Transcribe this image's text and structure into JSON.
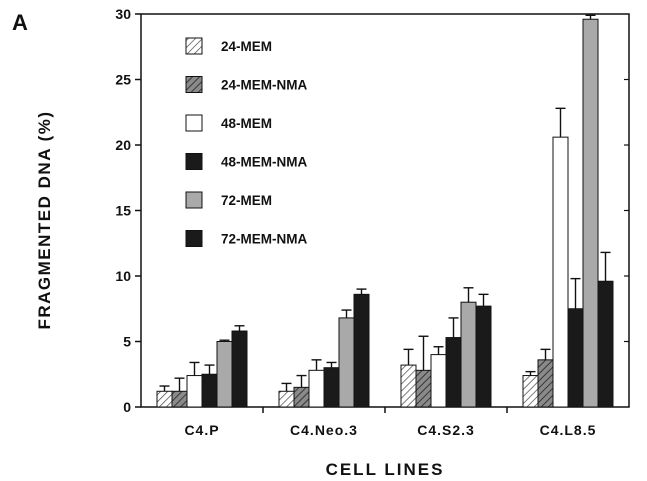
{
  "chart_data": {
    "type": "bar",
    "panel_label": "A",
    "xlabel": "CELL LINES",
    "ylabel": "FRAGMENTED DNA (%)",
    "ylim": [
      0,
      30
    ],
    "yticks": [
      0,
      5,
      10,
      15,
      20,
      25,
      30
    ],
    "grid": false,
    "legend_position": "top-left",
    "categories": [
      "C4.P",
      "C4.Neo.3",
      "C4.S2.3",
      "C4.L8.5"
    ],
    "series": [
      {
        "name": "24-MEM",
        "pattern": "hatch-light",
        "values": [
          1.2,
          1.2,
          3.2,
          2.4
        ],
        "errors": [
          0.4,
          0.6,
          1.2,
          0.3
        ]
      },
      {
        "name": "24-MEM-NMA",
        "pattern": "hatch-dark",
        "values": [
          1.2,
          1.5,
          2.8,
          3.6
        ],
        "errors": [
          1.0,
          0.9,
          2.6,
          0.8
        ]
      },
      {
        "name": "48-MEM",
        "pattern": "white",
        "values": [
          2.4,
          2.8,
          4.0,
          20.6
        ],
        "errors": [
          1.0,
          0.8,
          0.6,
          2.2
        ]
      },
      {
        "name": "48-MEM-NMA",
        "pattern": "black",
        "values": [
          2.5,
          3.0,
          5.3,
          7.5
        ],
        "errors": [
          0.7,
          0.4,
          1.5,
          2.3
        ]
      },
      {
        "name": "72-MEM",
        "pattern": "gray",
        "values": [
          5.0,
          6.8,
          8.0,
          29.6
        ],
        "errors": [
          0.1,
          0.6,
          1.1,
          0.3
        ]
      },
      {
        "name": "72-MEM-NMA",
        "pattern": "black",
        "values": [
          5.8,
          8.6,
          7.7,
          9.6
        ],
        "errors": [
          0.4,
          0.4,
          0.9,
          2.2
        ]
      }
    ],
    "colors": {
      "hatch_light_bg": "#ffffff",
      "hatch_light_line": "#444444",
      "hatch_dark_bg": "#8a8a8a",
      "hatch_dark_line": "#222222",
      "white": "#ffffff",
      "black": "#1a1a1a",
      "gray": "#a9a9a9",
      "outline": "#111111"
    }
  }
}
